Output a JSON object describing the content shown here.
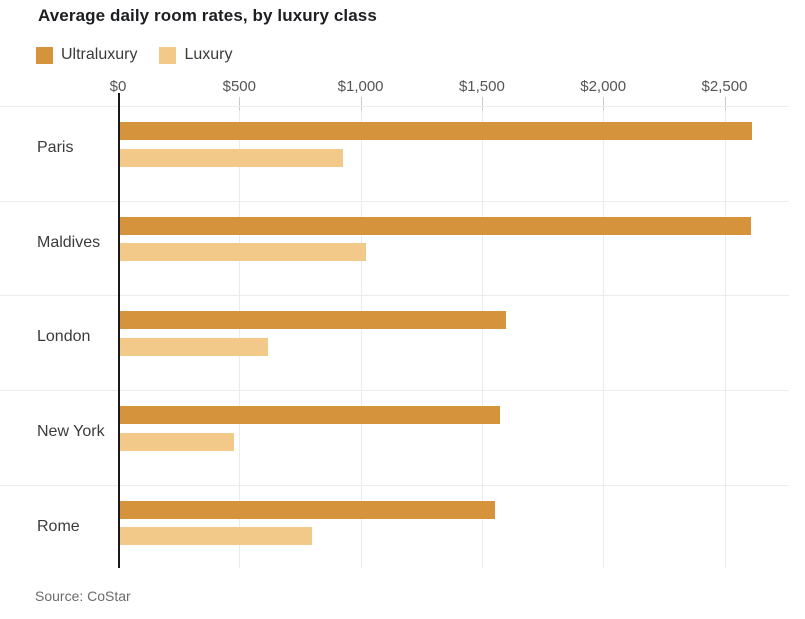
{
  "title": "Average daily room rates, by luxury class",
  "source": "Source: CoStar",
  "legend": [
    {
      "label": "Ultraluxury",
      "color": "#d5943b"
    },
    {
      "label": "Luxury",
      "color": "#f3c98a"
    }
  ],
  "chart_data": {
    "type": "bar",
    "orientation": "horizontal",
    "title": "Average daily room rates, by luxury class",
    "categories": [
      "Paris",
      "Maldives",
      "London",
      "New York",
      "Rome"
    ],
    "series": [
      {
        "name": "Ultraluxury",
        "color": "#d5943b",
        "values": [
          2606,
          2602,
          1593,
          1566,
          1547
        ]
      },
      {
        "name": "Luxury",
        "color": "#f3c98a",
        "values": [
          921,
          1016,
          608,
          469,
          790
        ]
      }
    ],
    "x_ticks": [
      0,
      500,
      1000,
      1500,
      2000,
      2500
    ],
    "x_tick_labels": [
      "$0",
      "$500",
      "$1,000",
      "$1,500",
      "$2,000",
      "$2,500"
    ],
    "xlim": [
      0,
      2765
    ],
    "xlabel": "",
    "ylabel": "",
    "grid": true,
    "legend_position": "top-left",
    "source": "Source: CoStar"
  },
  "colors": {
    "background": "#ffffff",
    "axis_line": "#1a181b",
    "gridline": "#ebebeb",
    "tick_label": "#555555",
    "category_label": "#3b3b3b",
    "title_text": "#1c1e21",
    "source_text": "#6b6b6b"
  }
}
